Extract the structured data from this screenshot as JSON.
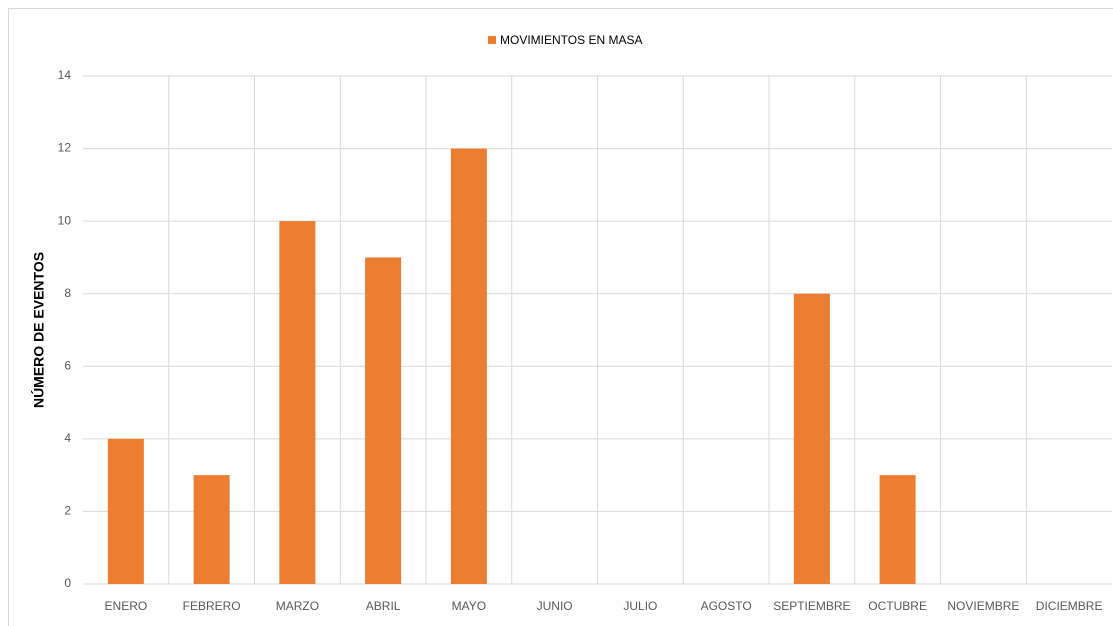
{
  "chart_data": {
    "type": "bar",
    "y_label": "NÚMERO DE EVENTOS",
    "categories": [
      "ENERO",
      "FEBRERO",
      "MARZO",
      "ABRIL",
      "MAYO",
      "JUNIO",
      "JULIO",
      "AGOSTO",
      "SEPTIEMBRE",
      "OCTUBRE",
      "NOVIEMBRE",
      "DICIEMBRE"
    ],
    "series": [
      {
        "name": "MOVIMIENTOS EN MASA",
        "color": "#ed7d31",
        "values": [
          4,
          3,
          10,
          9,
          12,
          0,
          0,
          0,
          8,
          3,
          0,
          0
        ]
      }
    ],
    "ylim": [
      0,
      14
    ],
    "yticks": [
      0,
      2,
      4,
      6,
      8,
      10,
      12,
      14
    ],
    "grid": true,
    "legend": "top"
  }
}
